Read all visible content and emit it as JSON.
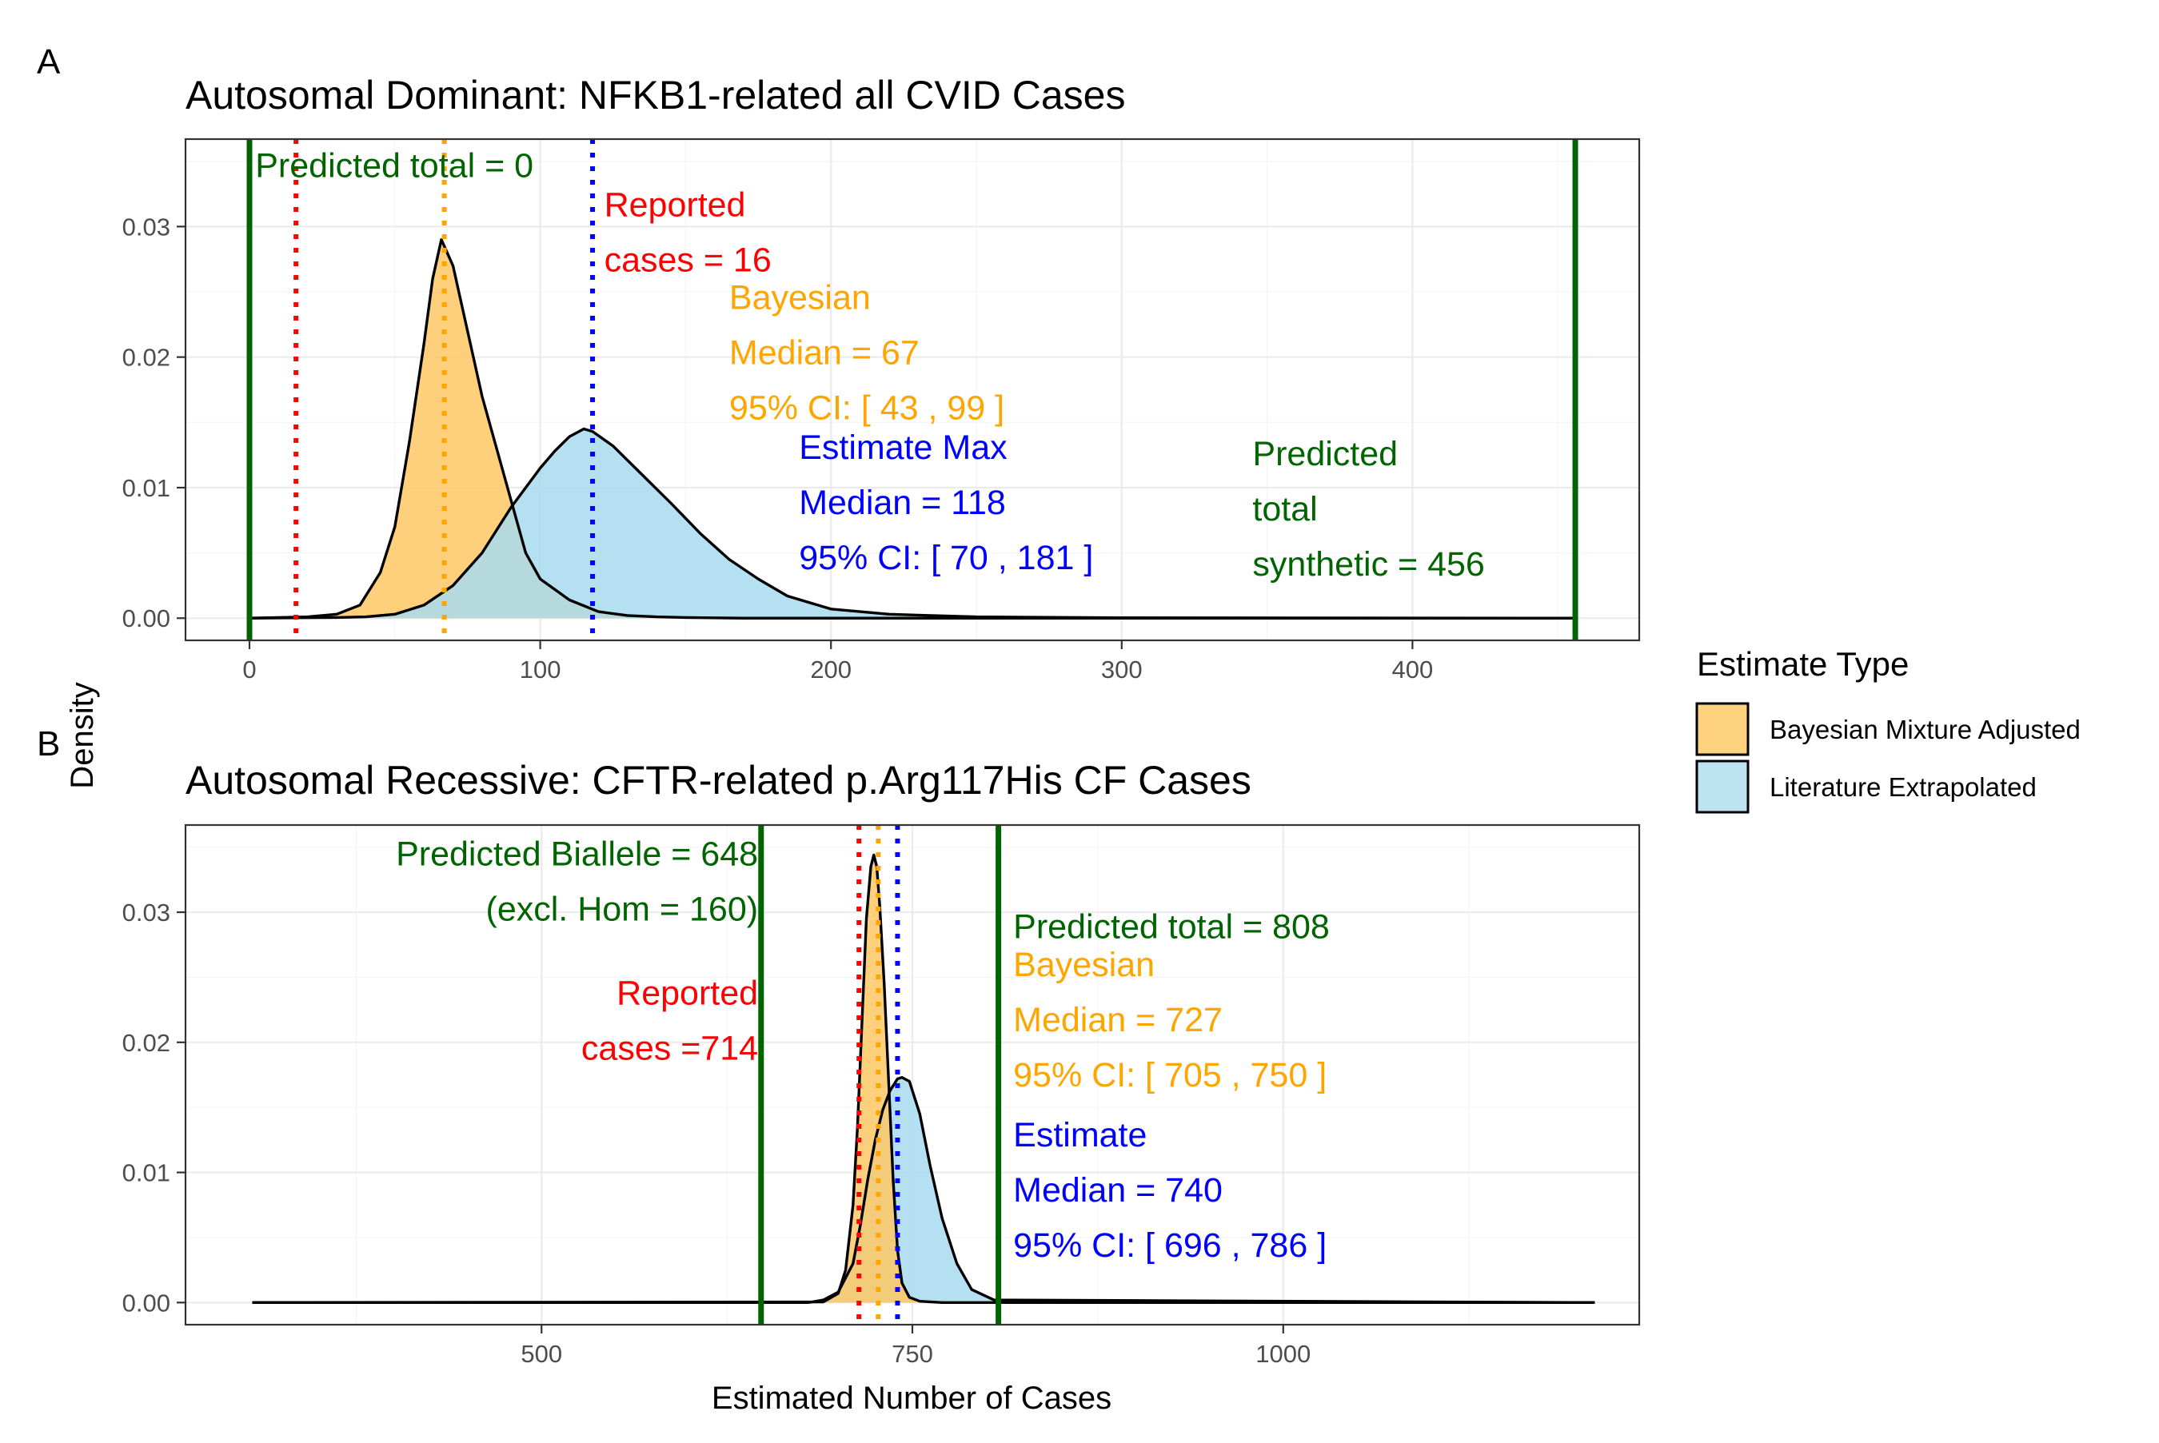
{
  "figure": {
    "ylabel": "Density",
    "xlabel": "Estimated Number of Cases"
  },
  "legend": {
    "title": "Estimate Type",
    "items": [
      {
        "label": "Bayesian Mixture Adjusted",
        "color": "#FFD280"
      },
      {
        "label": "Literature Extrapolated",
        "color": "#BDE3F2"
      }
    ]
  },
  "colors": {
    "bayesian_fill": "#FFC864",
    "literature_fill": "#A8DAEE",
    "reported_line": "#FF0000",
    "bayesian_line": "#FFA500",
    "literature_line": "#0000FF",
    "total_line": "#006400"
  },
  "chart_data": [
    {
      "type": "area",
      "panel": "A",
      "title": "Autosomal Dominant: NFKB1-related all CVID Cases",
      "xlim": [
        -22,
        478
      ],
      "ylim": [
        -0.0017,
        0.0367
      ],
      "xticks": [
        0,
        100,
        200,
        300,
        400
      ],
      "yticks": [
        0.0,
        0.01,
        0.02,
        0.03
      ],
      "ytick_labels": [
        "0.00",
        "0.01",
        "0.02",
        "0.03"
      ],
      "grid": true,
      "series": [
        {
          "key": "bayesian",
          "x": [
            0,
            20,
            30,
            38,
            45,
            50,
            55,
            60,
            63,
            66,
            70,
            75,
            80,
            85,
            90,
            95,
            100,
            110,
            120,
            130,
            140,
            150,
            170,
            456
          ],
          "y": [
            0,
            0.0001,
            0.0003,
            0.001,
            0.0035,
            0.007,
            0.0135,
            0.021,
            0.026,
            0.029,
            0.027,
            0.022,
            0.017,
            0.013,
            0.009,
            0.005,
            0.003,
            0.0014,
            0.0005,
            0.0002,
            0.0001,
            5e-05,
            0,
            0
          ]
        },
        {
          "key": "literature",
          "x": [
            0,
            30,
            40,
            50,
            60,
            70,
            80,
            90,
            100,
            105,
            110,
            115,
            118,
            125,
            135,
            145,
            155,
            165,
            175,
            185,
            200,
            220,
            250,
            300,
            456
          ],
          "y": [
            0,
            5e-05,
            0.0001,
            0.0003,
            0.001,
            0.0025,
            0.005,
            0.0085,
            0.0115,
            0.0128,
            0.0139,
            0.0145,
            0.0143,
            0.0132,
            0.011,
            0.0088,
            0.0065,
            0.0045,
            0.003,
            0.0017,
            0.0007,
            0.0003,
            0.0001,
            3e-05,
            0
          ]
        }
      ],
      "vlines": [
        {
          "key": "reported",
          "x": 16,
          "style": "dotted"
        },
        {
          "key": "bayesian",
          "x": 67,
          "style": "dotted"
        },
        {
          "key": "literature",
          "x": 118,
          "style": "dotted"
        },
        {
          "key": "total",
          "x": 0,
          "style": "solid"
        },
        {
          "key": "total",
          "x": 456,
          "style": "solid"
        }
      ],
      "annotations": [
        {
          "key": "total",
          "anchor": "start",
          "x": 2,
          "y": 0.0338,
          "lines": [
            "Predicted total = 0"
          ]
        },
        {
          "key": "reported",
          "anchor": "start",
          "x": 122,
          "y": 0.0308,
          "lines": [
            "Reported",
            "cases = 16"
          ]
        },
        {
          "key": "bayesian",
          "anchor": "start",
          "x": 165,
          "y": 0.0237,
          "lines": [
            "Bayesian",
            "Median = 67",
            "95% CI: [ 43 , 99 ]"
          ]
        },
        {
          "key": "literature",
          "anchor": "start",
          "x": 189,
          "y": 0.0122,
          "lines": [
            "Estimate Max",
            "Median = 118",
            "95% CI: [ 70 , 181 ]"
          ]
        },
        {
          "key": "total",
          "anchor": "start",
          "x": 345,
          "y": 0.0117,
          "lines": [
            "Predicted",
            "total",
            "synthetic = 456"
          ]
        }
      ]
    },
    {
      "type": "area",
      "panel": "B",
      "title": "Autosomal Recessive: CFTR-related p.Arg117His CF Cases",
      "xlim": [
        260,
        1240
      ],
      "ylim": [
        -0.0017,
        0.0367
      ],
      "xticks": [
        500,
        750,
        1000
      ],
      "yticks": [
        0.0,
        0.01,
        0.02,
        0.03
      ],
      "ytick_labels": [
        "0.00",
        "0.01",
        "0.02",
        "0.03"
      ],
      "grid": true,
      "series": [
        {
          "key": "literature",
          "x": [
            305,
            680,
            690,
            700,
            710,
            715,
            720,
            725,
            730,
            735,
            740,
            743,
            748,
            755,
            762,
            770,
            780,
            790,
            805,
            1210
          ],
          "y": [
            0,
            0,
            0.0002,
            0.0008,
            0.003,
            0.006,
            0.0095,
            0.0125,
            0.0148,
            0.0163,
            0.0172,
            0.0173,
            0.017,
            0.0145,
            0.0105,
            0.0065,
            0.003,
            0.001,
            0.0002,
            0
          ]
        },
        {
          "key": "bayesian",
          "x": [
            305,
            690,
            700,
            705,
            710,
            713,
            716,
            719,
            722,
            724,
            726,
            728,
            731,
            734,
            737,
            740,
            743,
            748,
            755,
            770,
            1210
          ],
          "y": [
            0,
            5e-05,
            0.0007,
            0.0025,
            0.0075,
            0.0135,
            0.0215,
            0.0295,
            0.0335,
            0.0344,
            0.0335,
            0.0305,
            0.0245,
            0.017,
            0.0095,
            0.004,
            0.0015,
            0.0004,
            0.0001,
            0,
            0
          ]
        }
      ],
      "vlines": [
        {
          "key": "reported",
          "x": 714,
          "style": "dotted"
        },
        {
          "key": "bayesian",
          "x": 727,
          "style": "dotted"
        },
        {
          "key": "literature",
          "x": 740,
          "style": "dotted"
        },
        {
          "key": "total",
          "x": 648,
          "style": "solid"
        },
        {
          "key": "total",
          "x": 808,
          "style": "solid"
        }
      ],
      "annotations": [
        {
          "key": "total",
          "anchor": "end",
          "x": 646,
          "y": 0.0336,
          "lines": [
            "Predicted Biallele = 648",
            "(excl. Hom = 160)"
          ]
        },
        {
          "key": "reported",
          "anchor": "end",
          "x": 646,
          "y": 0.0229,
          "lines": [
            "Reported",
            "cases =714"
          ]
        },
        {
          "key": "total",
          "anchor": "start",
          "x": 818,
          "y": 0.028,
          "lines": [
            "Predicted total = 808"
          ]
        },
        {
          "key": "bayesian",
          "anchor": "start",
          "x": 818,
          "y": 0.0251,
          "lines": [
            "Bayesian",
            "Median = 727",
            "95% CI: [ 705 , 750 ]"
          ]
        },
        {
          "key": "literature",
          "anchor": "start",
          "x": 818,
          "y": 0.012,
          "lines": [
            "Estimate",
            "Median = 740",
            "95% CI: [ 696 , 786 ]"
          ]
        }
      ]
    }
  ]
}
